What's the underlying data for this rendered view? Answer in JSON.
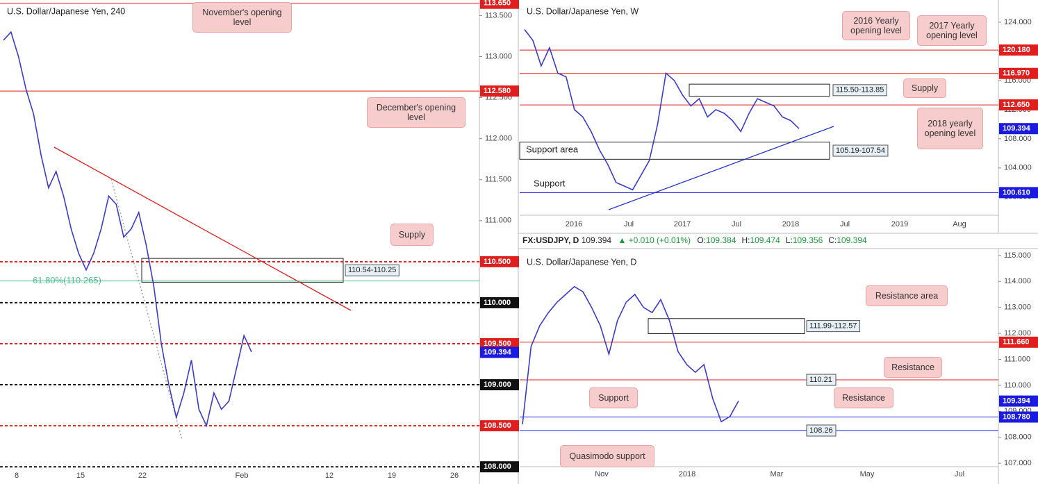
{
  "panels": [
    {
      "title": "U.S. Dollar/Japanese Yen, 240",
      "ylim": [
        107.79,
        113.69
      ],
      "yticks": [
        {
          "value": 108,
          "label": "108.000"
        },
        {
          "value": 108.5,
          "label": "108.500"
        },
        {
          "value": 109,
          "label": "109.000"
        },
        {
          "value": 109.5,
          "label": "109.500"
        },
        {
          "value": 110,
          "label": "110.000"
        },
        {
          "value": 110.5,
          "label": "110.500"
        },
        {
          "value": 111,
          "label": "111.000"
        },
        {
          "value": 111.5,
          "label": "111.500"
        },
        {
          "value": 112,
          "label": "112.000"
        },
        {
          "value": 112.5,
          "label": "112.500"
        },
        {
          "value": 113,
          "label": "113.000"
        },
        {
          "value": 113.5,
          "label": "113.500"
        }
      ],
      "categories": [
        "8",
        "15",
        "22",
        "Feb",
        "12",
        "19",
        "26"
      ],
      "levels": [
        {
          "value": 113.65,
          "label": "113.650",
          "color": "#e01e1e",
          "line": "solid",
          "tag": "axis"
        },
        {
          "value": 112.58,
          "label": "112.580",
          "color": "#e01e1e",
          "line": "solid",
          "tag": "axis"
        },
        {
          "value": 110.5,
          "label": "110.500",
          "color": "#e01e1e",
          "line": "dashed",
          "tag": "axis"
        },
        {
          "value": 110.265,
          "label": "61.80%(110.265)",
          "color": "#4dbf8f",
          "line": "solid",
          "tag": "inline"
        },
        {
          "value": 110,
          "label": "110.000",
          "color": "#111111",
          "line": "dashed",
          "tag": "axis"
        },
        {
          "value": 109.5,
          "label": "109.500",
          "color": "#e01e1e",
          "line": "dashed",
          "tag": "axis"
        },
        {
          "value": 109.394,
          "label": "109.394",
          "color": "#1a1ae0",
          "line": "none",
          "tag": "axis"
        },
        {
          "value": 109,
          "label": "109.000",
          "color": "#111111",
          "line": "dashed",
          "tag": "axis"
        },
        {
          "value": 108.5,
          "label": "108.500",
          "color": "#e01e1e",
          "line": "dashed",
          "tag": "axis"
        },
        {
          "value": 108,
          "label": "108.000",
          "color": "#111111",
          "line": "dashed",
          "tag": "axis"
        }
      ],
      "zones": [
        {
          "label": "110.54-110.25",
          "high": 110.54,
          "low": 110.25
        }
      ],
      "callouts": [
        "November's opening level",
        "December's opening level",
        "Supply"
      ],
      "notes": [],
      "closes": [
        113.2,
        113.3,
        113.0,
        112.6,
        112.3,
        111.8,
        111.4,
        111.6,
        111.3,
        110.9,
        110.6,
        110.4,
        110.6,
        110.9,
        111.3,
        111.2,
        110.8,
        110.9,
        111.1,
        110.7,
        110.2,
        109.5,
        109.0,
        108.6,
        108.9,
        109.3,
        108.7,
        108.5,
        108.9,
        108.7,
        108.8,
        109.2,
        109.6,
        109.4
      ]
    },
    {
      "title": "U.S. Dollar/Japanese Yen, W",
      "ylim": [
        97.5,
        127.05
      ],
      "yticks": [
        {
          "value": 100,
          "label": "100.000"
        },
        {
          "value": 104,
          "label": "104.000"
        },
        {
          "value": 108,
          "label": "108.000"
        },
        {
          "value": 112,
          "label": "112.000"
        },
        {
          "value": 116,
          "label": "116.000"
        },
        {
          "value": 120,
          "label": "120.000"
        },
        {
          "value": 124,
          "label": "124.000"
        }
      ],
      "categories": [
        "2016",
        "Jul",
        "2017",
        "Jul",
        "2018",
        "Jul",
        "2019",
        "Aug"
      ],
      "levels": [
        {
          "value": 120.18,
          "label": "120.180",
          "color": "#e01e1e",
          "line": "solid",
          "tag": "axis"
        },
        {
          "value": 116.97,
          "label": "116.970",
          "color": "#e01e1e",
          "line": "solid",
          "tag": "axis"
        },
        {
          "value": 112.65,
          "label": "112.650",
          "color": "#e01e1e",
          "line": "solid",
          "tag": "axis"
        },
        {
          "value": 109.394,
          "label": "109.394",
          "color": "#1a1ae0",
          "line": "none",
          "tag": "axis"
        },
        {
          "value": 100.61,
          "label": "100.610",
          "color": "#1a1ae0",
          "line": "solid",
          "tag": "axis"
        }
      ],
      "zones": [
        {
          "label": "115.50-113.85",
          "high": 115.5,
          "low": 113.85
        },
        {
          "label": "105.19-107.54",
          "low": 105.19,
          "high": 107.54
        }
      ],
      "callouts": [
        "2016 Yearly opening level",
        "2017 Yearly opening level",
        "Supply",
        "2018 yearly opening level"
      ],
      "notes": [
        "Support area",
        "Support"
      ],
      "closes": [
        123.0,
        121.5,
        118.0,
        120.5,
        117.0,
        116.5,
        112.0,
        111.0,
        109.0,
        106.5,
        104.5,
        102.0,
        101.5,
        101.0,
        103.0,
        105.0,
        110.0,
        117.0,
        116.0,
        114.0,
        112.5,
        113.5,
        111.0,
        112.0,
        111.5,
        110.5,
        109.0,
        111.5,
        113.5,
        113.0,
        112.5,
        111.0,
        110.5,
        109.4
      ]
    },
    {
      "title": "U.S. Dollar/Japanese Yen, D",
      "ylim": [
        106.87,
        115.21
      ],
      "yticks": [
        {
          "value": 107,
          "label": "107.000"
        },
        {
          "value": 108,
          "label": "108.000"
        },
        {
          "value": 109,
          "label": "109.000"
        },
        {
          "value": 110,
          "label": "110.000"
        },
        {
          "value": 111,
          "label": "111.000"
        },
        {
          "value": 112,
          "label": "112.000"
        },
        {
          "value": 113,
          "label": "113.000"
        },
        {
          "value": 114,
          "label": "114.000"
        },
        {
          "value": 115,
          "label": "115.000"
        }
      ],
      "categories": [
        "Nov",
        "2018",
        "Mar",
        "May",
        "Jul"
      ],
      "levels": [
        {
          "value": 111.66,
          "label": "111.660",
          "color": "#e01e1e",
          "line": "solid",
          "tag": "axis"
        },
        {
          "value": 110.21,
          "label": "110.21",
          "color": "#e01e1e",
          "line": "solid",
          "tag": "box"
        },
        {
          "value": 109.394,
          "label": "109.394",
          "color": "#1a1ae0",
          "line": "none",
          "tag": "axis"
        },
        {
          "value": 108.78,
          "label": "108.780",
          "color": "#1a1ae0",
          "line": "solid",
          "tag": "axis"
        },
        {
          "value": 108.26,
          "label": "108.26",
          "color": "#1a1ae0",
          "line": "solid",
          "tag": "box"
        }
      ],
      "zones": [
        {
          "label": "111.99-112.57",
          "low": 111.99,
          "high": 112.57
        }
      ],
      "callouts": [
        "Resistance area",
        "Resistance",
        "Resistance",
        "Support",
        "Quasimodo support"
      ],
      "notes": [],
      "closes": [
        108.5,
        111.5,
        112.3,
        112.8,
        113.2,
        113.5,
        113.8,
        113.6,
        113.0,
        112.3,
        111.2,
        112.5,
        113.2,
        113.5,
        113.0,
        112.8,
        113.3,
        112.5,
        111.3,
        110.8,
        110.5,
        110.8,
        109.5,
        108.6,
        108.8,
        109.4
      ]
    }
  ],
  "header": {
    "symbol": "FX:USDJPY, D",
    "last": 109.394,
    "change": {
      "value": 0.01,
      "label": "▲ +0.010 (+0.01%)"
    },
    "ohlc": [
      {
        "label": "O:",
        "value": 109.384
      },
      {
        "label": "H:",
        "value": 109.474
      },
      {
        "label": "L:",
        "value": 109.356
      },
      {
        "label": "C:",
        "value": 109.394
      }
    ]
  }
}
